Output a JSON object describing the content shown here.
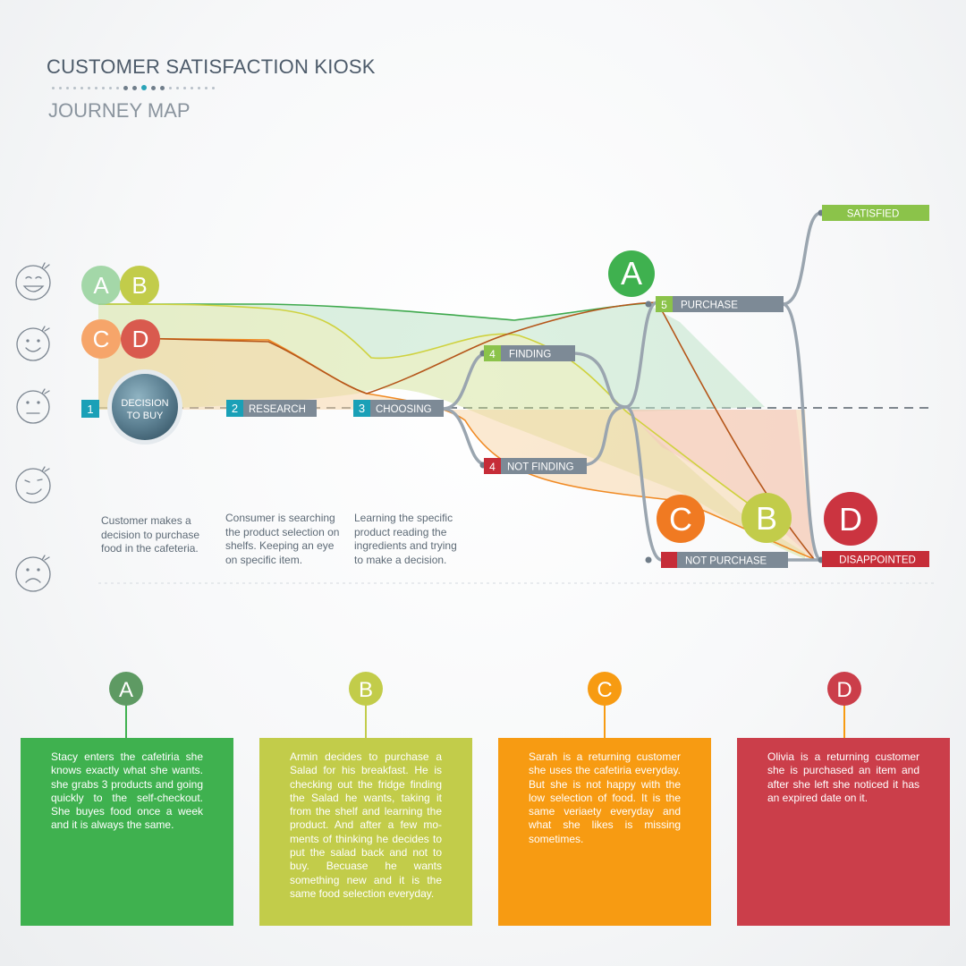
{
  "header": {
    "title": "CUSTOMER SATISFACTION KIOSK",
    "subtitle": "JOURNEY MAP"
  },
  "steps": {
    "decision_num": "1",
    "decision_label_1": "DECISION",
    "decision_label_2": "TO BUY",
    "research_num": "2",
    "research_label": "RESEARCH",
    "choosing_num": "3",
    "choosing_label": "CHOOSING",
    "finding_num": "4",
    "finding_label": "FINDING",
    "not_finding_num": "4",
    "not_finding_label": "NOT FINDING",
    "purchase_num": "5",
    "purchase_label": "PURCHASE",
    "not_purchase_label": "NOT PURCHASE",
    "satisfied_label": "SATISFIED",
    "disappointed_label": "DISAPPOINTED"
  },
  "markers": {
    "a": "A",
    "b": "B",
    "c": "C",
    "d": "D"
  },
  "descriptions": {
    "decision": "Customer makes a decision to purchase food in the cafeteria.",
    "research": "Consumer is searching the product selection on shelfs. Keeping an eye on specific item.",
    "choosing": "Learning the specific product reading the ingredients and trying to make a decision."
  },
  "personas": {
    "a_story": "Stacy enters the cafetiria she knows exactly what she wants. she grabs 3 products and going quickly to the self-checkout. She buyes food once a week and it is always the same.",
    "b_story": "Armin decides to purchase a Salad for his breakfast. He is checking out the fridge finding the Salad he wants, taking it from the shelf and learning the product. And after a few mo-ments of thinking he decides to put the salad back and not to buy. Becuase he wants something new and it is the same food selection everyday.",
    "c_story": "Sarah is a returning customer she uses the cafetiria everyday. But she is not happy with the low selection of food. It is the same veriaety everyday and what she likes is missing sometimes.",
    "d_story": "Olivia is a returning customer she is purchased an item and after she left she noticed it has an expired date on it."
  },
  "colors": {
    "persona_a": "#3fb14f",
    "persona_b": "#c2cc4a",
    "persona_c": "#f79b12",
    "persona_d": "#cb3e4a",
    "step_teal": "#1aa0b7",
    "step_green": "#8bc34a",
    "step_red": "#c62d38",
    "step_label_bg": "#7d8a96",
    "track": "#9ba6b0"
  },
  "icons": [
    "laughing-face-icon",
    "smiling-face-icon",
    "neutral-face-icon",
    "smirking-face-icon",
    "sad-face-icon"
  ]
}
